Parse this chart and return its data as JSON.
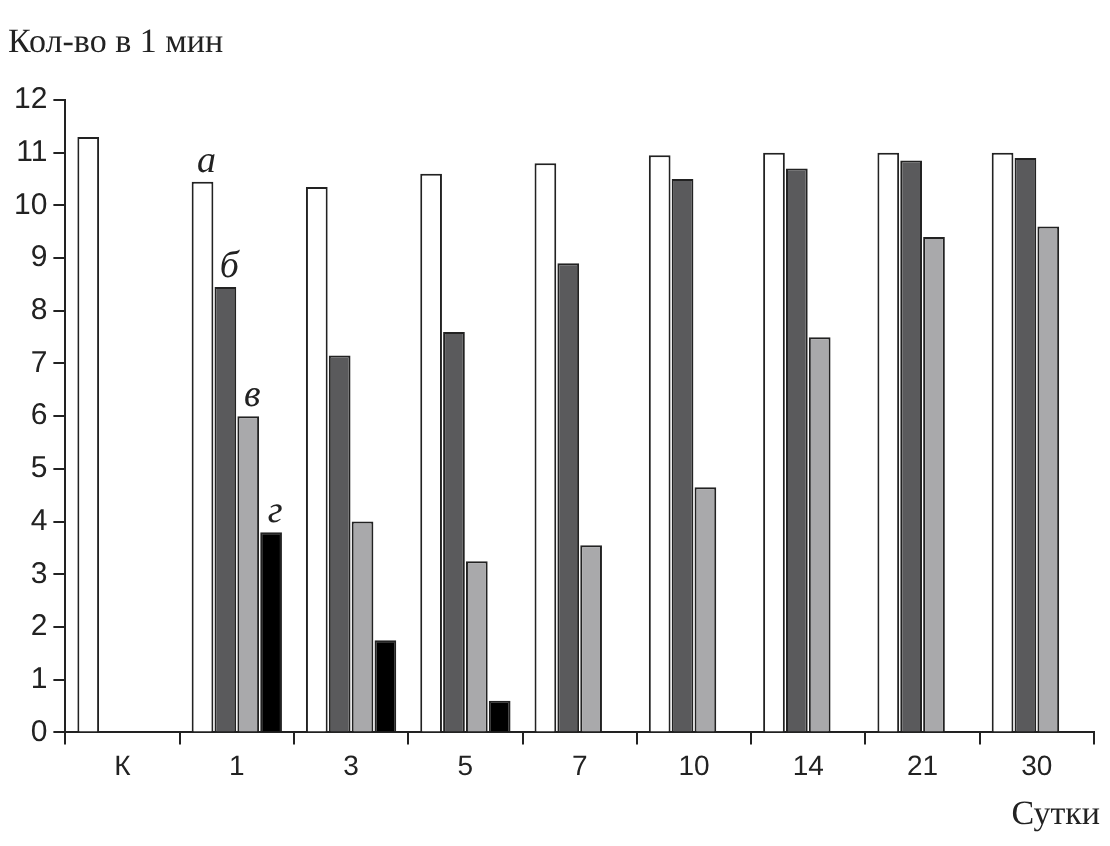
{
  "chart_data": {
    "type": "bar",
    "ylabel": "Кол-во в 1 мин",
    "xlabel": "Сутки",
    "categories": [
      "К",
      "1",
      "3",
      "5",
      "7",
      "10",
      "14",
      "21",
      "30"
    ],
    "series": [
      {
        "name": "а",
        "color": "#ffffff",
        "values": [
          11.3,
          10.45,
          10.35,
          10.6,
          10.8,
          10.95,
          11.0,
          11.0,
          11.0
        ]
      },
      {
        "name": "б",
        "color": "#5a5a5c",
        "values": [
          null,
          8.45,
          7.15,
          7.6,
          8.9,
          10.5,
          10.7,
          10.85,
          10.9
        ]
      },
      {
        "name": "в",
        "color": "#a9a9ab",
        "values": [
          null,
          6.0,
          4.0,
          3.25,
          3.55,
          4.65,
          7.5,
          9.4,
          9.6
        ]
      },
      {
        "name": "г",
        "color": "#000000",
        "values": [
          null,
          3.8,
          1.75,
          0.6,
          null,
          null,
          null,
          null,
          null
        ]
      }
    ],
    "ylim": [
      0,
      12
    ],
    "yticks": [
      0,
      1,
      2,
      3,
      4,
      5,
      6,
      7,
      8,
      9,
      10,
      11,
      12
    ],
    "grid": false,
    "legend": false
  }
}
